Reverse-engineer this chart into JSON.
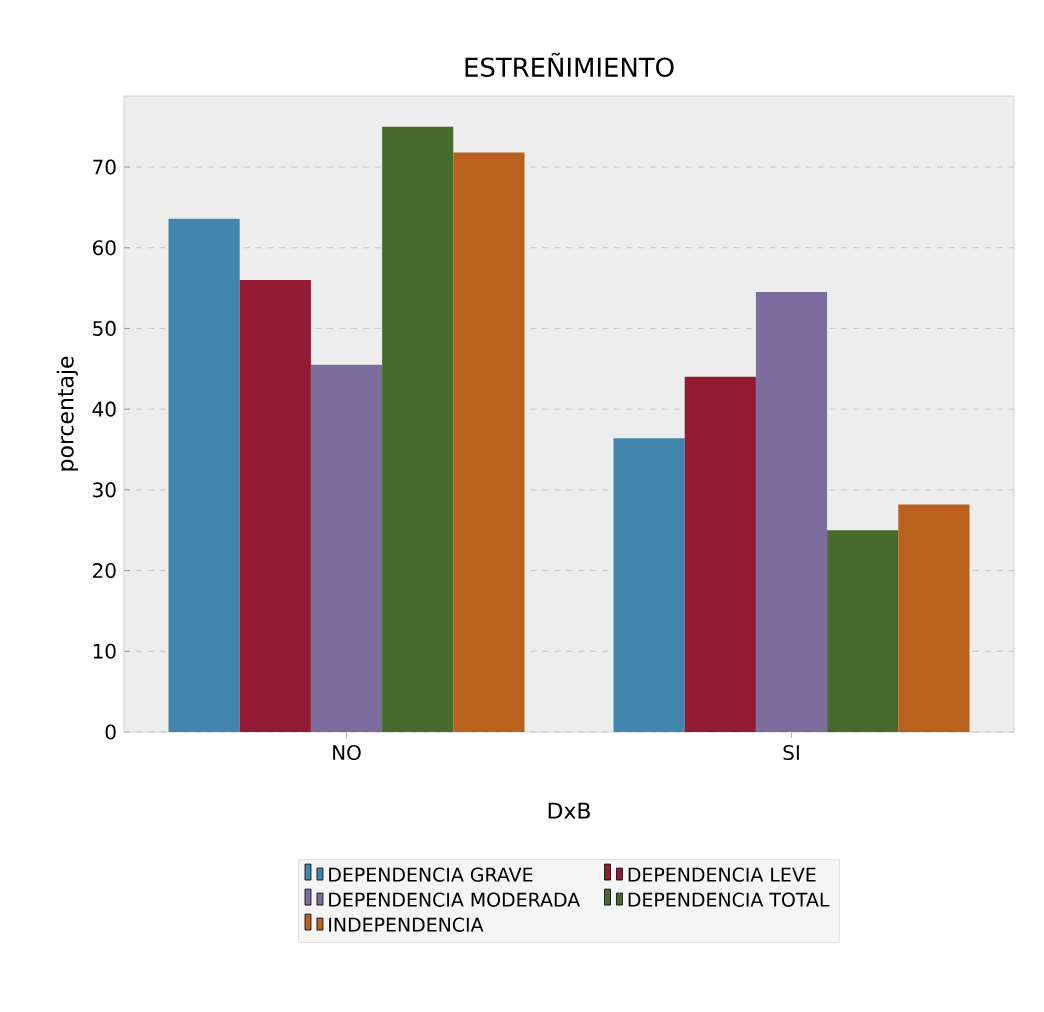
{
  "chart_data": {
    "type": "bar",
    "title": "ESTREÑIMIENTO",
    "ylabel": "porcentaje",
    "legend_title": "DxB",
    "categories": [
      "NO",
      "SI"
    ],
    "series": [
      {
        "name": "DEPENDENCIA GRAVE",
        "color": "#4286b0",
        "values": [
          63.6,
          36.4
        ]
      },
      {
        "name": "DEPENDENCIA LEVE",
        "color": "#921a33",
        "values": [
          56.0,
          44.0
        ]
      },
      {
        "name": "DEPENDENCIA MODERADA",
        "color": "#7c6d9c",
        "values": [
          45.5,
          54.5
        ]
      },
      {
        "name": "DEPENDENCIA TOTAL",
        "color": "#486b2d",
        "values": [
          75.0,
          25.0
        ]
      },
      {
        "name": "INDEPENDENCIA",
        "color": "#ba611d",
        "values": [
          71.8,
          28.2
        ]
      }
    ],
    "ylim": [
      0,
      78.8
    ],
    "yticks": [
      0,
      10,
      20,
      30,
      40,
      50,
      60,
      70
    ],
    "grid": "y",
    "legend": "bottom"
  }
}
